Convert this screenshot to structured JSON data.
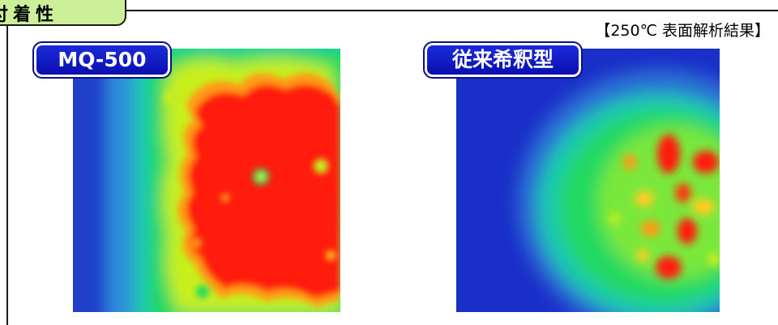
{
  "header": {
    "title": "付着性"
  },
  "caption": "【250℃ 表面解析結果】",
  "panels": [
    {
      "label": "MQ-500",
      "image": "heatmap-surface-analysis"
    },
    {
      "label": "従来希釈型",
      "image": "heatmap-surface-analysis"
    }
  ],
  "colors": {
    "header_bg": "#ccf099",
    "badge_bg": "#0a14c8",
    "heat_low": "#1a2fc8",
    "heat_mid": "#19e05a",
    "heat_high": "#ff1a0a"
  }
}
